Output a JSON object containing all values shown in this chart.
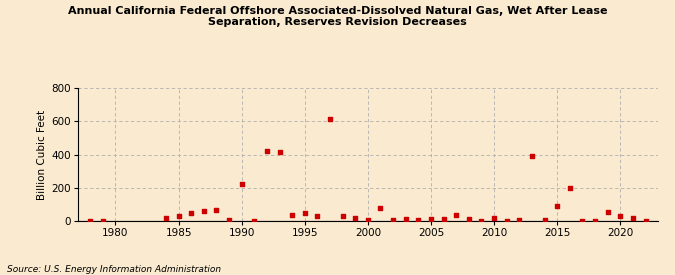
{
  "title": "Annual California Federal Offshore Associated-Dissolved Natural Gas, Wet After Lease\nSeparation, Reserves Revision Decreases",
  "ylabel": "Billion Cubic Feet",
  "source": "Source: U.S. Energy Information Administration",
  "background_color": "#faebd0",
  "plot_background_color": "#faebd0",
  "marker_color": "#cc0000",
  "xlim": [
    1977,
    2023
  ],
  "ylim": [
    0,
    800
  ],
  "yticks": [
    0,
    200,
    400,
    600,
    800
  ],
  "xticks": [
    1980,
    1985,
    1990,
    1995,
    2000,
    2005,
    2010,
    2015,
    2020
  ],
  "data": {
    "1978": 2,
    "1979": 1,
    "1984": 22,
    "1985": 30,
    "1986": 50,
    "1987": 65,
    "1988": 70,
    "1989": 10,
    "1990": 225,
    "1991": 5,
    "1992": 420,
    "1993": 415,
    "1994": 40,
    "1995": 50,
    "1996": 35,
    "1997": 615,
    "1998": 35,
    "1999": 20,
    "2000": 10,
    "2001": 80,
    "2002": 10,
    "2003": 15,
    "2004": 10,
    "2005": 15,
    "2006": 15,
    "2007": 40,
    "2008": 15,
    "2009": 5,
    "2010": 20,
    "2011": 5,
    "2012": 10,
    "2013": 395,
    "2014": 10,
    "2015": 95,
    "2016": 200,
    "2017": 5,
    "2018": 5,
    "2019": 55,
    "2020": 30,
    "2021": 20,
    "2022": 3
  }
}
